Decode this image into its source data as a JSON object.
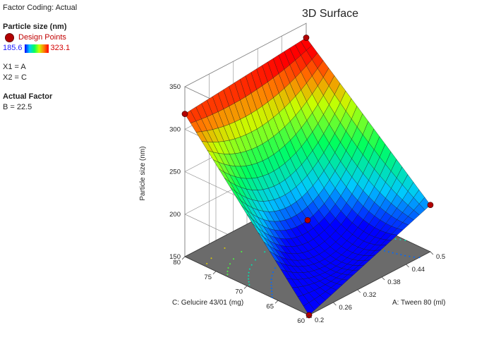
{
  "legend": {
    "factor_coding": "Factor Coding: Actual",
    "response_title": "Particle size (nm)",
    "design_points_label": "Design Points",
    "scale_min": "185.6",
    "scale_max": "323.1",
    "x1": "X1 = A",
    "x2": "X2 = C",
    "actual_factor_title": "Actual Factor",
    "actual_factor_value": "B = 22.5"
  },
  "colors": {
    "floor": "#6b6b6b",
    "design_point": "#b30000",
    "scale_low": "#0000ff",
    "scale_high": "#ff0000"
  },
  "chart_data": {
    "type": "surface3d",
    "title": "3D Surface",
    "zlabel": "Particle size (nm)",
    "xlabel": "A: Tween 80 (ml)",
    "ylabel": "C: Gelucire 43/01 (mg)",
    "x_ticks": [
      "0.2",
      "0.26",
      "0.32",
      "0.38",
      "0.44",
      "0.5"
    ],
    "y_ticks": [
      "60",
      "65",
      "70",
      "75",
      "80"
    ],
    "z_ticks": [
      "150",
      "200",
      "250",
      "300",
      "350"
    ],
    "xlim": [
      0.2,
      0.5
    ],
    "ylim": [
      60,
      80
    ],
    "zlim": [
      150,
      350
    ],
    "grid": true,
    "surface_corners": [
      {
        "A": 0.2,
        "C": 60,
        "z": 150
      },
      {
        "A": 0.5,
        "C": 60,
        "z": 205
      },
      {
        "A": 0.2,
        "C": 80,
        "z": 318
      },
      {
        "A": 0.5,
        "C": 80,
        "z": 333
      }
    ],
    "design_points": [
      {
        "A": 0.2,
        "C": 80,
        "z": 318
      },
      {
        "A": 0.5,
        "C": 80,
        "z": 333
      },
      {
        "A": 0.35,
        "C": 70,
        "z": 190
      },
      {
        "A": 0.5,
        "C": 60,
        "z": 205
      },
      {
        "A": 0.2,
        "C": 60,
        "z": 150
      }
    ],
    "color_range": [
      185.6,
      323.1
    ]
  }
}
